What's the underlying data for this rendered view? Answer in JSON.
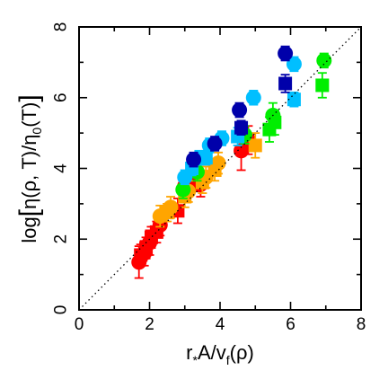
{
  "chart_data": {
    "type": "scatter",
    "title": "",
    "xlabel": "r*A/vf(ρ)",
    "ylabel": "log[η(ρ,T)/η0(T)]",
    "xlim": [
      0,
      8
    ],
    "ylim": [
      0,
      8
    ],
    "xticks": [
      "0",
      "2",
      "4",
      "6",
      "8"
    ],
    "yticks": [
      "0",
      "2",
      "4",
      "6",
      "8"
    ],
    "grid": false,
    "legend": "none",
    "reference_line": {
      "style": "dotted",
      "color": "#000000",
      "from": [
        0,
        0
      ],
      "to": [
        8,
        8
      ]
    },
    "series": [
      {
        "color": "#ff0000",
        "marker": "circle",
        "points": [
          [
            1.7,
            1.35,
            0.45
          ],
          [
            1.85,
            1.6,
            0.35
          ],
          [
            2.0,
            1.9,
            0.35
          ],
          [
            2.3,
            2.4,
            0.3
          ],
          [
            3.0,
            3.5,
            0.3
          ],
          [
            3.45,
            3.55,
            0.35
          ],
          [
            4.6,
            4.5,
            0.55
          ],
          [
            4.8,
            4.8,
            0.4
          ]
        ]
      },
      {
        "color": "#ff0000",
        "marker": "square",
        "points": [
          [
            1.75,
            1.55,
            0.3
          ],
          [
            1.9,
            1.75,
            0.3
          ],
          [
            2.05,
            2.05,
            0.3
          ],
          [
            2.2,
            2.2,
            0.3
          ],
          [
            2.8,
            2.8,
            0.35
          ],
          [
            3.35,
            3.7,
            0.35
          ]
        ]
      },
      {
        "color": "#ffa500",
        "marker": "circle",
        "points": [
          [
            2.3,
            2.65,
            0.3
          ],
          [
            2.6,
            2.9,
            0.3
          ],
          [
            3.1,
            3.35,
            0.3
          ],
          [
            3.6,
            3.75,
            0.3
          ],
          [
            3.95,
            4.15,
            0.3
          ]
        ]
      },
      {
        "color": "#ffa500",
        "marker": "square",
        "points": [
          [
            2.5,
            2.75,
            0.25
          ],
          [
            3.0,
            3.2,
            0.3
          ],
          [
            3.5,
            3.6,
            0.3
          ],
          [
            3.85,
            3.95,
            0.3
          ],
          [
            5.0,
            4.65,
            0.35
          ]
        ]
      },
      {
        "color": "#00ee00",
        "marker": "circle",
        "points": [
          [
            2.95,
            3.4,
            0.25
          ],
          [
            3.35,
            3.9,
            0.25
          ],
          [
            4.7,
            4.95,
            0.25
          ],
          [
            5.5,
            5.5,
            0.35
          ],
          [
            6.95,
            7.05,
            0.2
          ]
        ]
      },
      {
        "color": "#00ee00",
        "marker": "square",
        "points": [
          [
            5.4,
            5.1,
            0.35
          ],
          [
            5.55,
            5.3,
            0.35
          ],
          [
            6.9,
            6.35,
            0.35
          ]
        ]
      },
      {
        "color": "#00bfff",
        "marker": "circle",
        "points": [
          [
            3.0,
            3.75,
            0.2
          ],
          [
            3.4,
            4.3,
            0.2
          ],
          [
            3.7,
            4.65,
            0.2
          ],
          [
            4.05,
            4.85,
            0.2
          ],
          [
            4.95,
            6.0,
            0.2
          ],
          [
            6.1,
            6.95,
            0.2
          ]
        ]
      },
      {
        "color": "#00bfff",
        "marker": "square",
        "points": [
          [
            3.2,
            4.0,
            0.2
          ],
          [
            3.6,
            4.3,
            0.2
          ],
          [
            4.5,
            4.9,
            0.25
          ],
          [
            6.1,
            5.95,
            0.2
          ]
        ]
      },
      {
        "color": "#0000aa",
        "marker": "circle",
        "points": [
          [
            3.25,
            4.25,
            0.2
          ],
          [
            3.85,
            4.7,
            0.2
          ],
          [
            4.55,
            5.65,
            0.2
          ],
          [
            5.85,
            7.25,
            0.2
          ]
        ]
      },
      {
        "color": "#0000aa",
        "marker": "square",
        "points": [
          [
            4.6,
            5.15,
            0.2
          ],
          [
            5.85,
            6.4,
            0.25
          ]
        ]
      }
    ]
  }
}
